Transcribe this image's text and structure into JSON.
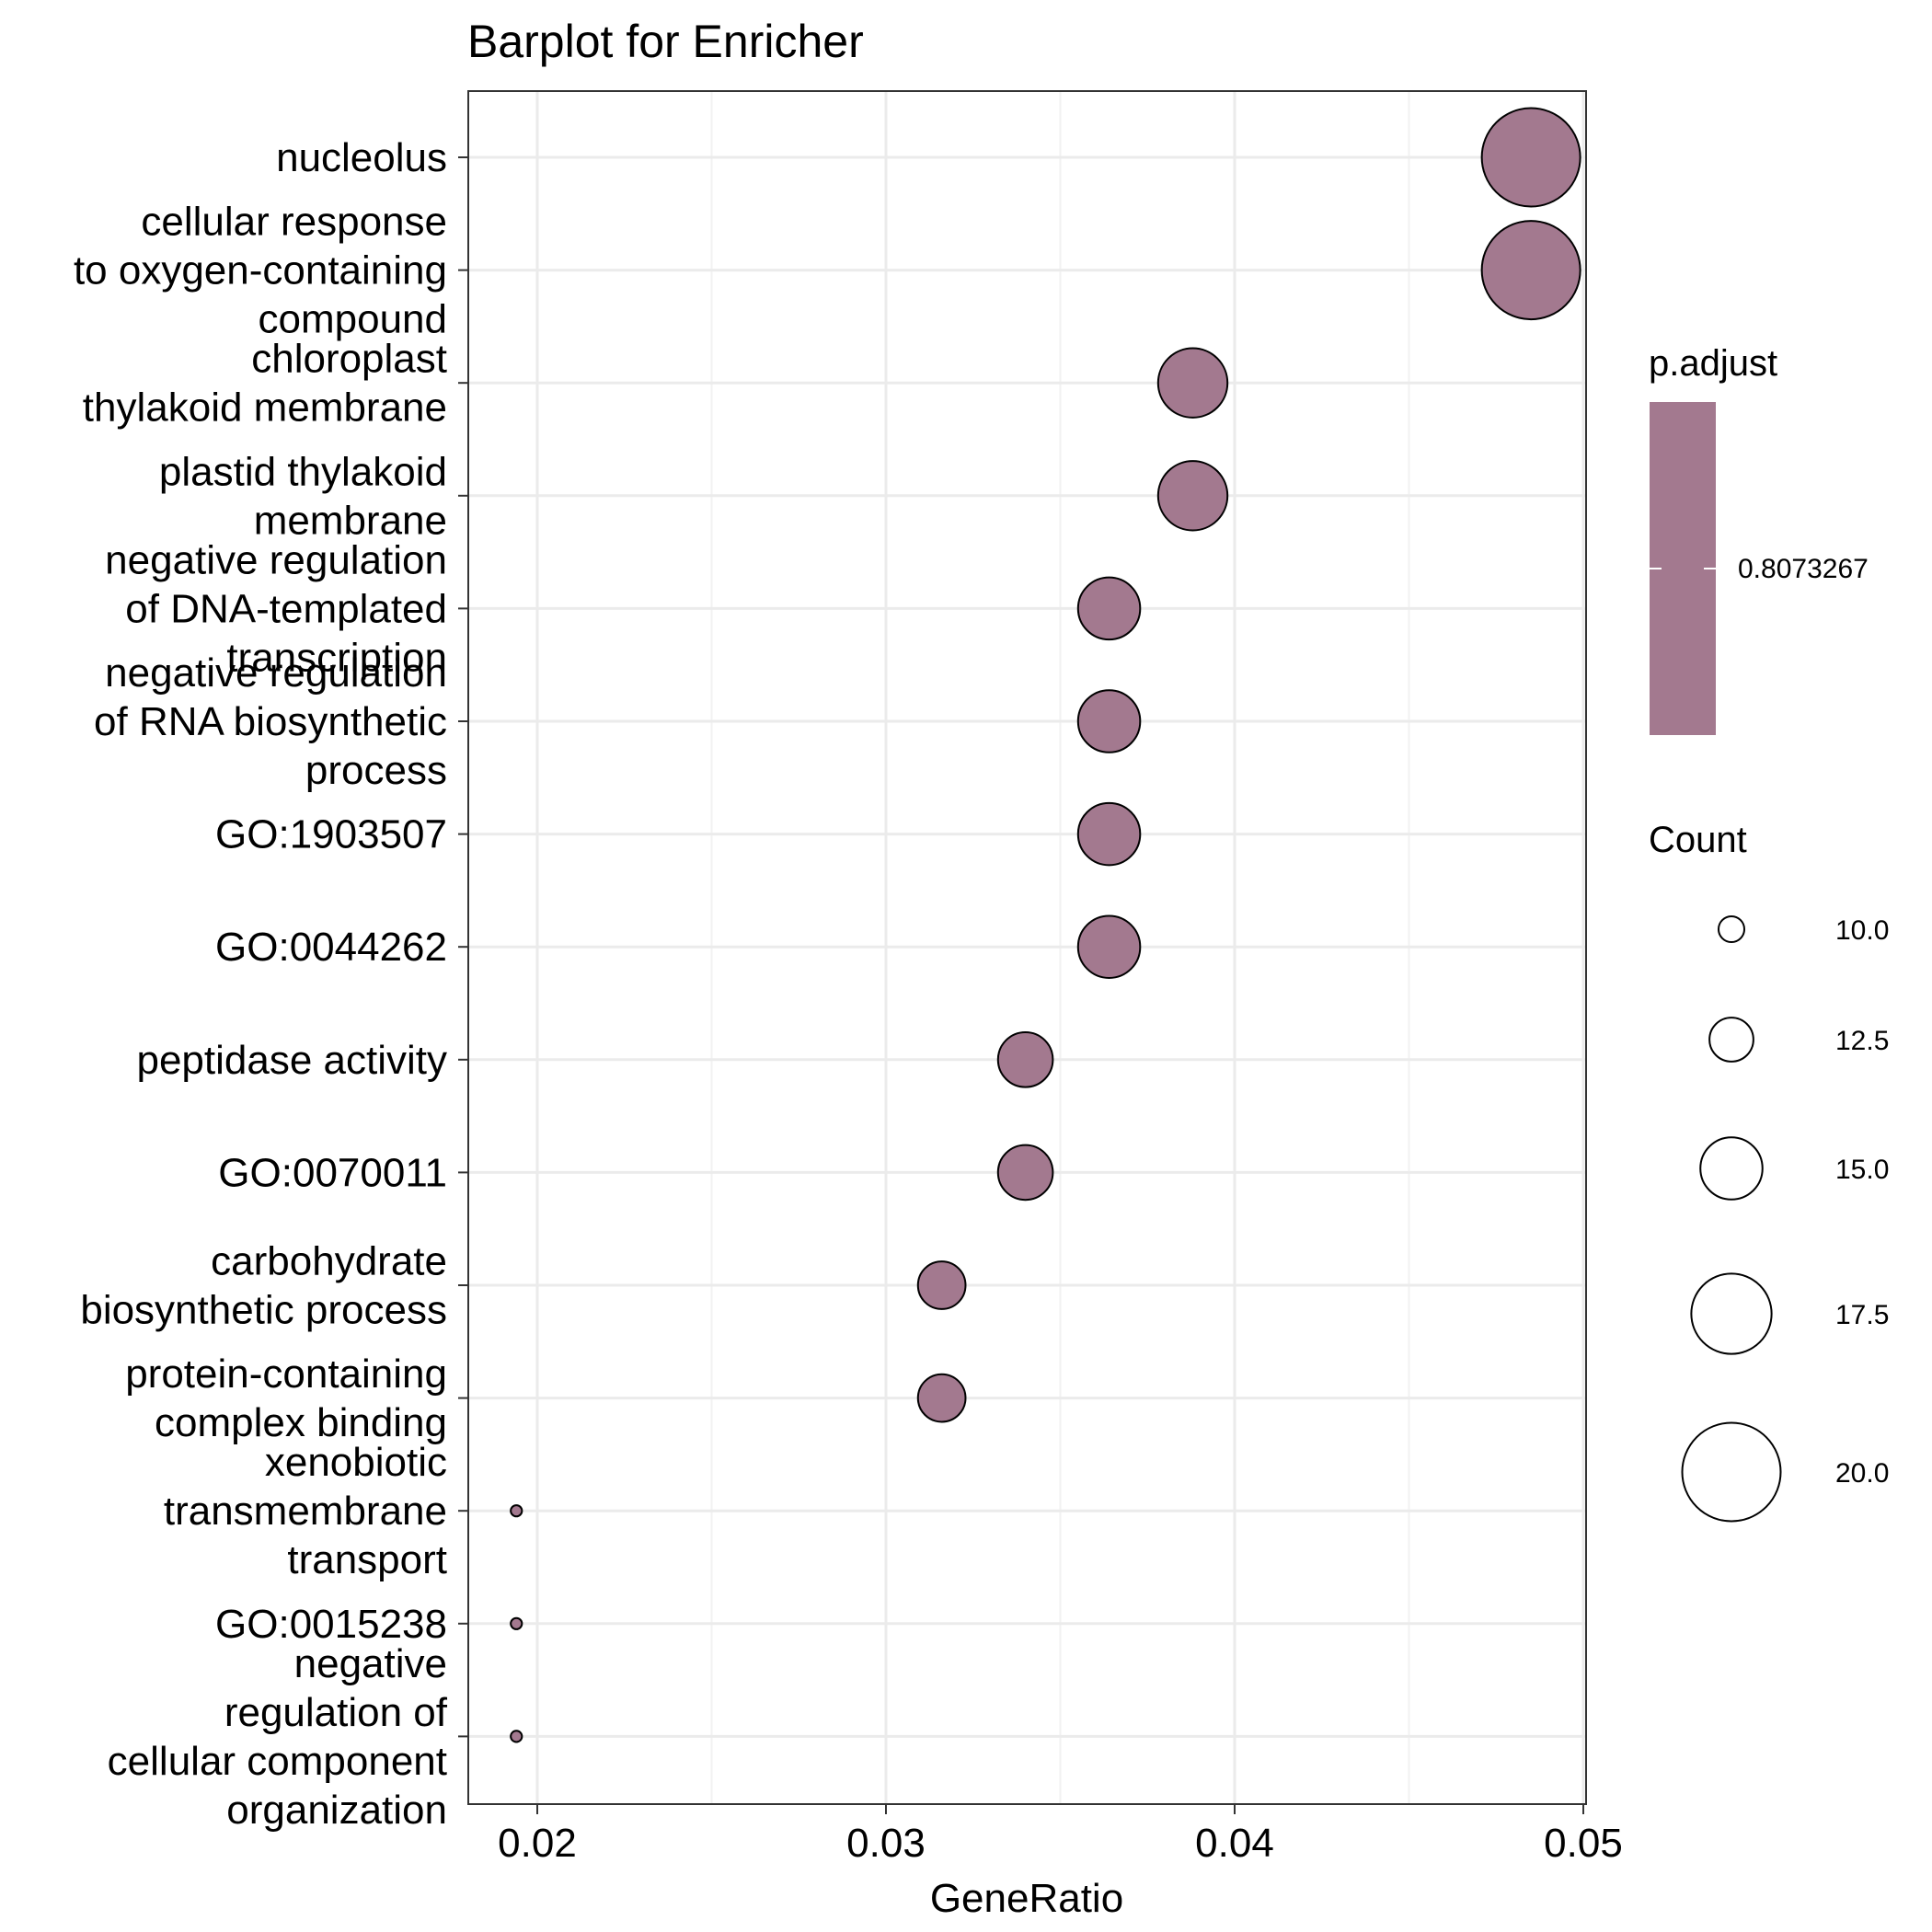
{
  "chart_data": {
    "type": "scatter",
    "title": "Barplot for Enricher",
    "xlabel": "GeneRatio",
    "ylabel": "",
    "xlim": [
      0.018,
      0.05
    ],
    "xticks": [
      "0.02",
      "0.03",
      "0.04",
      "0.05"
    ],
    "grid": true,
    "point_color": "#a3798f",
    "points": [
      {
        "label": [
          "nucleolus"
        ],
        "gene_ratio": 0.0485,
        "count": 20
      },
      {
        "label": [
          "cellular response",
          "to oxygen-containing",
          "compound"
        ],
        "gene_ratio": 0.0485,
        "count": 20
      },
      {
        "label": [
          "chloroplast",
          "thylakoid membrane"
        ],
        "gene_ratio": 0.0388,
        "count": 16
      },
      {
        "label": [
          "plastid thylakoid",
          "membrane"
        ],
        "gene_ratio": 0.0388,
        "count": 16
      },
      {
        "label": [
          "negative regulation",
          "of DNA-templated",
          "transcription"
        ],
        "gene_ratio": 0.0364,
        "count": 15
      },
      {
        "label": [
          "negative regulation",
          "of RNA biosynthetic",
          "process"
        ],
        "gene_ratio": 0.0364,
        "count": 15
      },
      {
        "label": [
          "GO:1903507"
        ],
        "gene_ratio": 0.0364,
        "count": 15
      },
      {
        "label": [
          "GO:0044262"
        ],
        "gene_ratio": 0.0364,
        "count": 15
      },
      {
        "label": [
          "peptidase activity"
        ],
        "gene_ratio": 0.034,
        "count": 14
      },
      {
        "label": [
          "GO:0070011"
        ],
        "gene_ratio": 0.034,
        "count": 14
      },
      {
        "label": [
          "carbohydrate",
          "biosynthetic process"
        ],
        "gene_ratio": 0.0316,
        "count": 13
      },
      {
        "label": [
          "protein-containing",
          "complex binding"
        ],
        "gene_ratio": 0.0316,
        "count": 13
      },
      {
        "label": [
          "xenobiotic",
          "transmembrane",
          "transport"
        ],
        "gene_ratio": 0.0194,
        "count": 8
      },
      {
        "label": [
          "GO:0015238"
        ],
        "gene_ratio": 0.0194,
        "count": 8
      },
      {
        "label": [
          "negative",
          "regulation of",
          "cellular component",
          "organization"
        ],
        "gene_ratio": 0.0194,
        "count": 8
      }
    ],
    "legend": {
      "placement": "right",
      "color": {
        "title": "p.adjust",
        "label": "0.8073267"
      },
      "size": {
        "title": "Count",
        "entries": [
          {
            "label": "10.0",
            "count": 10
          },
          {
            "label": "12.5",
            "count": 12.5
          },
          {
            "label": "15.0",
            "count": 15
          },
          {
            "label": "17.5",
            "count": 17.5
          },
          {
            "label": "20.0",
            "count": 20
          }
        ]
      }
    }
  }
}
